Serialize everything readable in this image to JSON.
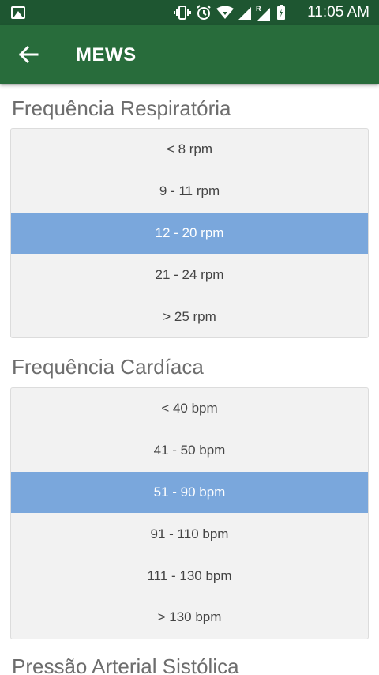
{
  "status_bar": {
    "time": "11:05 AM",
    "icons": [
      "image-icon",
      "vibrate-icon",
      "alarm-icon",
      "wifi-icon",
      "signal-icon",
      "roaming-signal-icon",
      "battery-icon"
    ]
  },
  "app_bar": {
    "title": "MEWS",
    "back_icon": "arrow-back-icon"
  },
  "sections": [
    {
      "title": "Frequência Respiratória",
      "options": [
        "< 8 rpm",
        "9 - 11 rpm",
        "12 - 20 rpm",
        "21 - 24 rpm",
        "> 25 rpm"
      ],
      "selected": "12 - 20 rpm"
    },
    {
      "title": "Frequência Cardíaca",
      "options": [
        "< 40 bpm",
        "41 - 50 bpm",
        "51 - 90 bpm",
        "91 - 110 bpm",
        "111 - 130 bpm",
        "> 130 bpm"
      ],
      "selected": "51 - 90 bpm"
    },
    {
      "title": "Pressão Arterial Sistólica"
    }
  ],
  "colors": {
    "status_bar": "#1e5631",
    "app_bar": "#286c3b",
    "selected_option": "#7aa7dc",
    "picker_background": "#f2f2f2",
    "section_title": "#6d6d6d"
  }
}
